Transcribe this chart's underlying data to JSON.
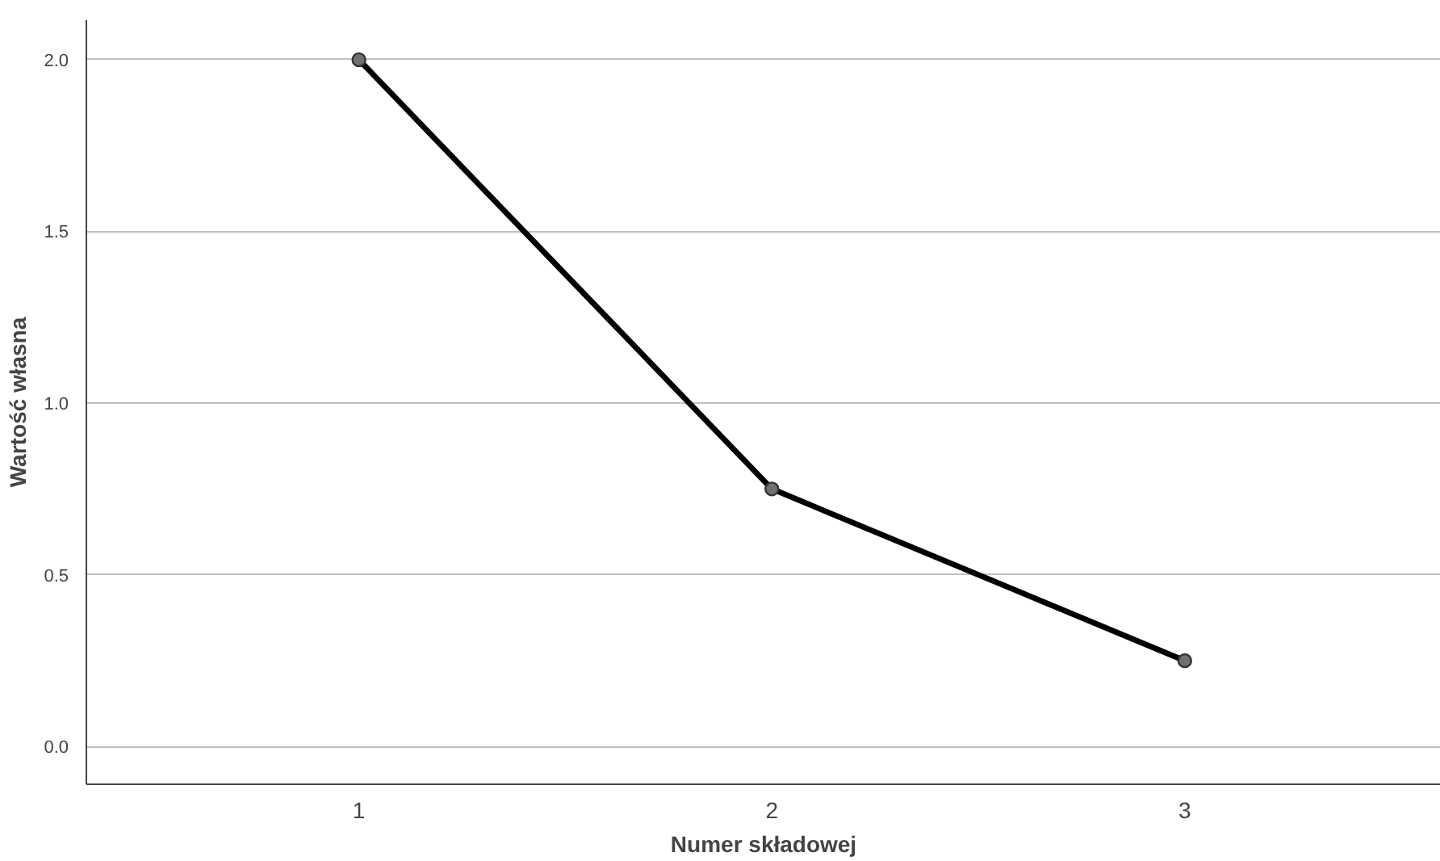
{
  "chart_data": {
    "type": "line",
    "xlabel": "Numer składowej",
    "ylabel": "Wartość własna",
    "categories": [
      "1",
      "2",
      "3"
    ],
    "series": [
      {
        "color": "#000000",
        "values": [
          2.0,
          0.75,
          0.25
        ]
      }
    ],
    "ylim": [
      -0.11,
      2.115
    ],
    "yticks": [
      {
        "value": 0,
        "label": "0.0"
      },
      {
        "value": 0.5,
        "label": "0.5"
      },
      {
        "value": 1,
        "label": "1.0"
      },
      {
        "value": 1.5,
        "label": "1.5"
      },
      {
        "value": 2,
        "label": "2.0"
      }
    ],
    "grid": "y",
    "marker": "circle",
    "line_style": "solid"
  }
}
